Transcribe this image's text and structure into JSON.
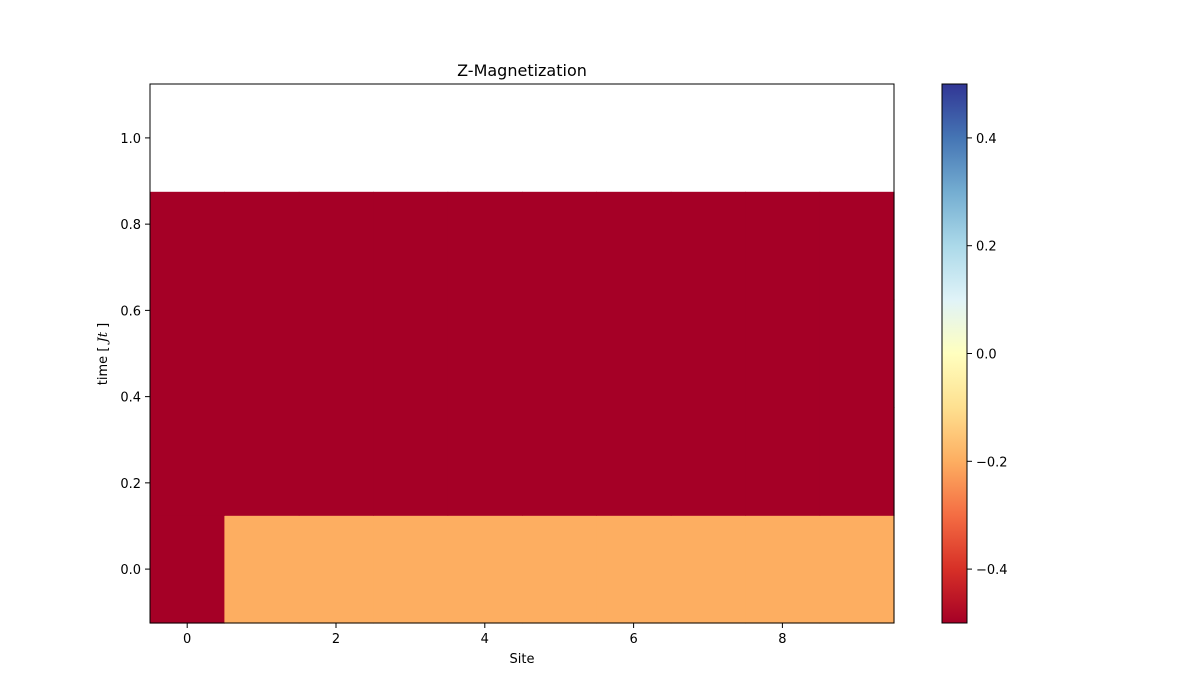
{
  "chart_data": {
    "type": "heatmap",
    "title": "Z-Magnetization",
    "xlabel": "Site",
    "ylabel": "time [ J t ]",
    "ylabel_parts": {
      "prefix": "time [ ",
      "italic": "Jt",
      "suffix": " ]"
    },
    "x_ticks": [
      0,
      2,
      4,
      6,
      8
    ],
    "y_ticks": [
      0.0,
      0.2,
      0.4,
      0.6,
      0.8,
      1.0
    ],
    "x_tick_labels": [
      "0",
      "2",
      "4",
      "6",
      "8"
    ],
    "y_tick_labels": [
      "0.0",
      "0.2",
      "0.4",
      "0.6",
      "0.8",
      "1.0"
    ],
    "xlim": [
      -0.5,
      9.5
    ],
    "ylim": [
      -0.125,
      1.125
    ],
    "sites": [
      0,
      1,
      2,
      3,
      4,
      5,
      6,
      7,
      8,
      9
    ],
    "times": [
      0.0,
      0.25,
      0.5,
      0.75,
      1.0
    ],
    "values": [
      [
        -0.5,
        -0.2,
        -0.2,
        -0.2,
        -0.2,
        -0.2,
        -0.2,
        -0.2,
        -0.2,
        -0.2
      ],
      [
        -0.5,
        -0.5,
        -0.5,
        -0.5,
        -0.5,
        -0.5,
        -0.5,
        -0.5,
        -0.5,
        -0.5
      ],
      [
        -0.5,
        -0.5,
        -0.5,
        -0.5,
        -0.5,
        -0.5,
        -0.5,
        -0.5,
        -0.5,
        -0.5
      ],
      [
        -0.5,
        -0.5,
        -0.5,
        -0.5,
        -0.5,
        -0.5,
        -0.5,
        -0.5,
        -0.5,
        -0.5
      ],
      [
        null,
        null,
        null,
        null,
        null,
        null,
        null,
        null,
        null,
        null
      ]
    ],
    "colorbar": {
      "colormap": "RdYlBu",
      "range": [
        -0.5,
        0.5
      ],
      "ticks": [
        -0.4,
        -0.2,
        0.0,
        0.2,
        0.4
      ],
      "tick_labels": [
        "−0.4",
        "−0.2",
        "0.0",
        "0.2",
        "0.4"
      ],
      "stops": [
        "#a50026",
        "#d73027",
        "#f46d43",
        "#fdae61",
        "#fee090",
        "#ffffbf",
        "#e0f3f8",
        "#abd9e9",
        "#74add1",
        "#4575b4",
        "#313695"
      ]
    }
  }
}
